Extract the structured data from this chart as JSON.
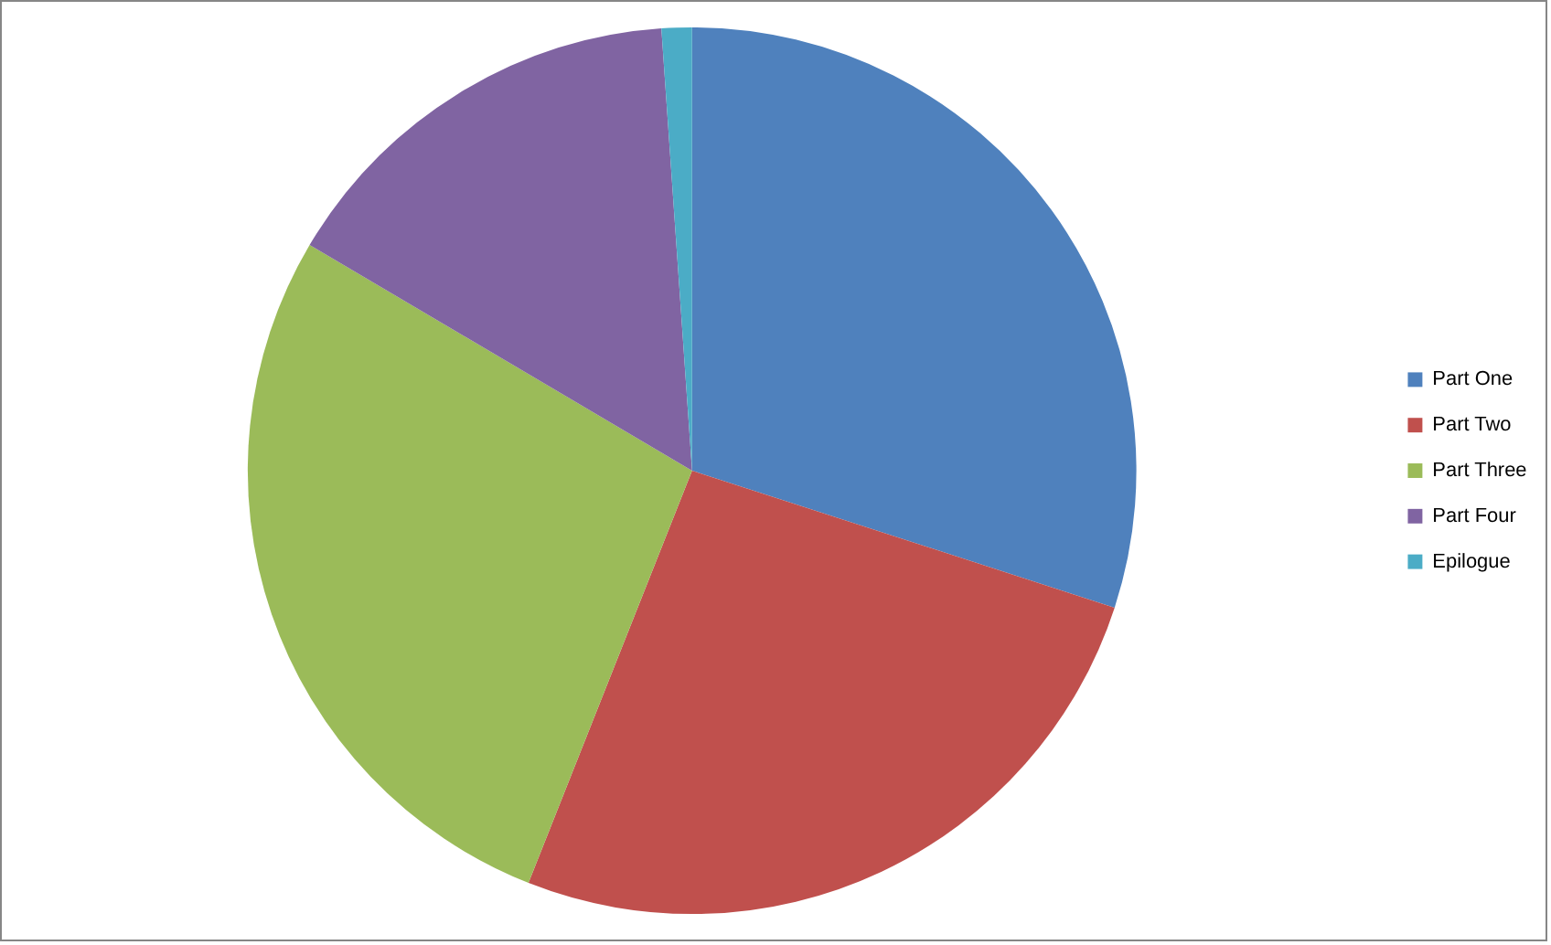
{
  "chart_data": {
    "type": "pie",
    "categories": [
      "Part One",
      "Part Two",
      "Part Three",
      "Part Four",
      "Epilogue"
    ],
    "values": [
      30,
      26,
      27.5,
      15.4,
      1.1
    ],
    "colors": [
      "#4f81bd",
      "#c0504d",
      "#9bbb59",
      "#8064a2",
      "#4bacc6"
    ],
    "legend": "right"
  }
}
